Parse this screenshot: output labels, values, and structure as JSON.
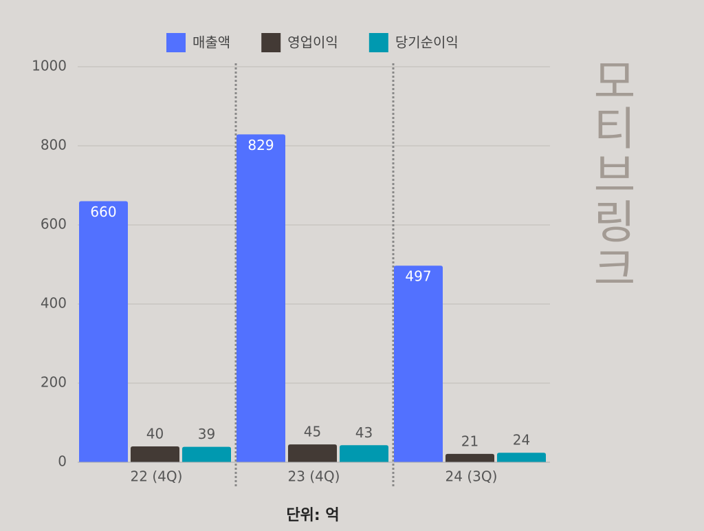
{
  "chart_data": {
    "type": "bar",
    "watermark": "모티브링크",
    "xlabel": "단위: 억",
    "categories": [
      "22 (4Q)",
      "23 (4Q)",
      "24 (3Q)"
    ],
    "series": [
      {
        "name": "매출액",
        "color": "#5271ff",
        "values": [
          660,
          829,
          497
        ]
      },
      {
        "name": "영업이익",
        "color": "#433a35",
        "values": [
          40,
          45,
          21
        ]
      },
      {
        "name": "당기순이익",
        "color": "#0099b0",
        "values": [
          39,
          43,
          24
        ]
      }
    ],
    "ylim": [
      0,
      1000
    ],
    "yticks": [
      0,
      200,
      400,
      600,
      800,
      1000
    ],
    "grid": true,
    "legend": "top"
  }
}
